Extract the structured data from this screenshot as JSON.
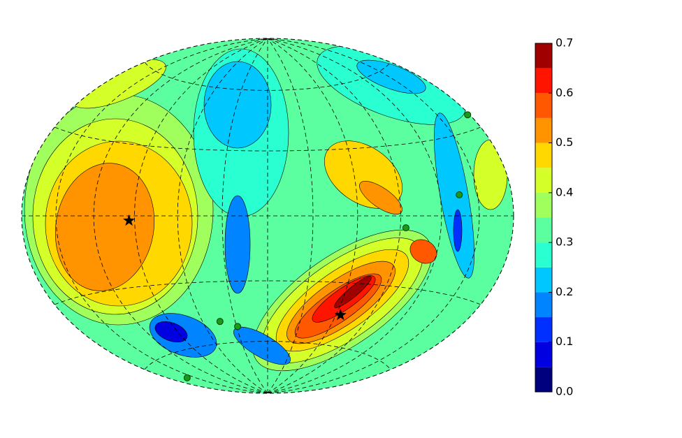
{
  "chart_data": {
    "type": "contour",
    "projection": "hammer",
    "levels": [
      0,
      0.05,
      0.1,
      0.15,
      0.2,
      0.25,
      0.3,
      0.35,
      0.4,
      0.45,
      0.5,
      0.55,
      0.6,
      0.65,
      0.7
    ],
    "colors": [
      "#00007f",
      "#0000e0",
      "#0030ff",
      "#0084ff",
      "#00c8ff",
      "#2affd2",
      "#5cffa0",
      "#a0ff5c",
      "#d4ff28",
      "#ffd800",
      "#ff9400",
      "#ff5800",
      "#ff1400",
      "#a00000"
    ],
    "clim": [
      0,
      0.7
    ],
    "cticks": [
      {
        "value": 0,
        "label": "0.0"
      },
      0.1,
      0.2,
      0.3,
      0.4,
      0.5,
      0.6,
      0.7
    ],
    "region_levels": [
      0.3,
      0.35,
      0.4,
      0.45,
      0.5,
      0.4,
      0.25,
      0.2,
      0.15,
      0.25,
      0.2,
      0.35,
      0.4,
      0.45,
      0.5,
      0.55,
      0.6,
      0.65,
      0.45,
      0.5,
      0.2,
      0.1,
      0.15,
      0.05,
      0.15,
      0.4,
      0.55
    ],
    "stars": {
      "lon": [
        -94,
        64
      ],
      "lat": [
        -2,
        -45
      ]
    },
    "points": {
      "lon": [
        94,
        178,
        135,
        -160,
        -44,
        -29
      ],
      "lat": [
        -5,
        35,
        8,
        -70,
        -49,
        -52
      ]
    },
    "grid": true
  }
}
